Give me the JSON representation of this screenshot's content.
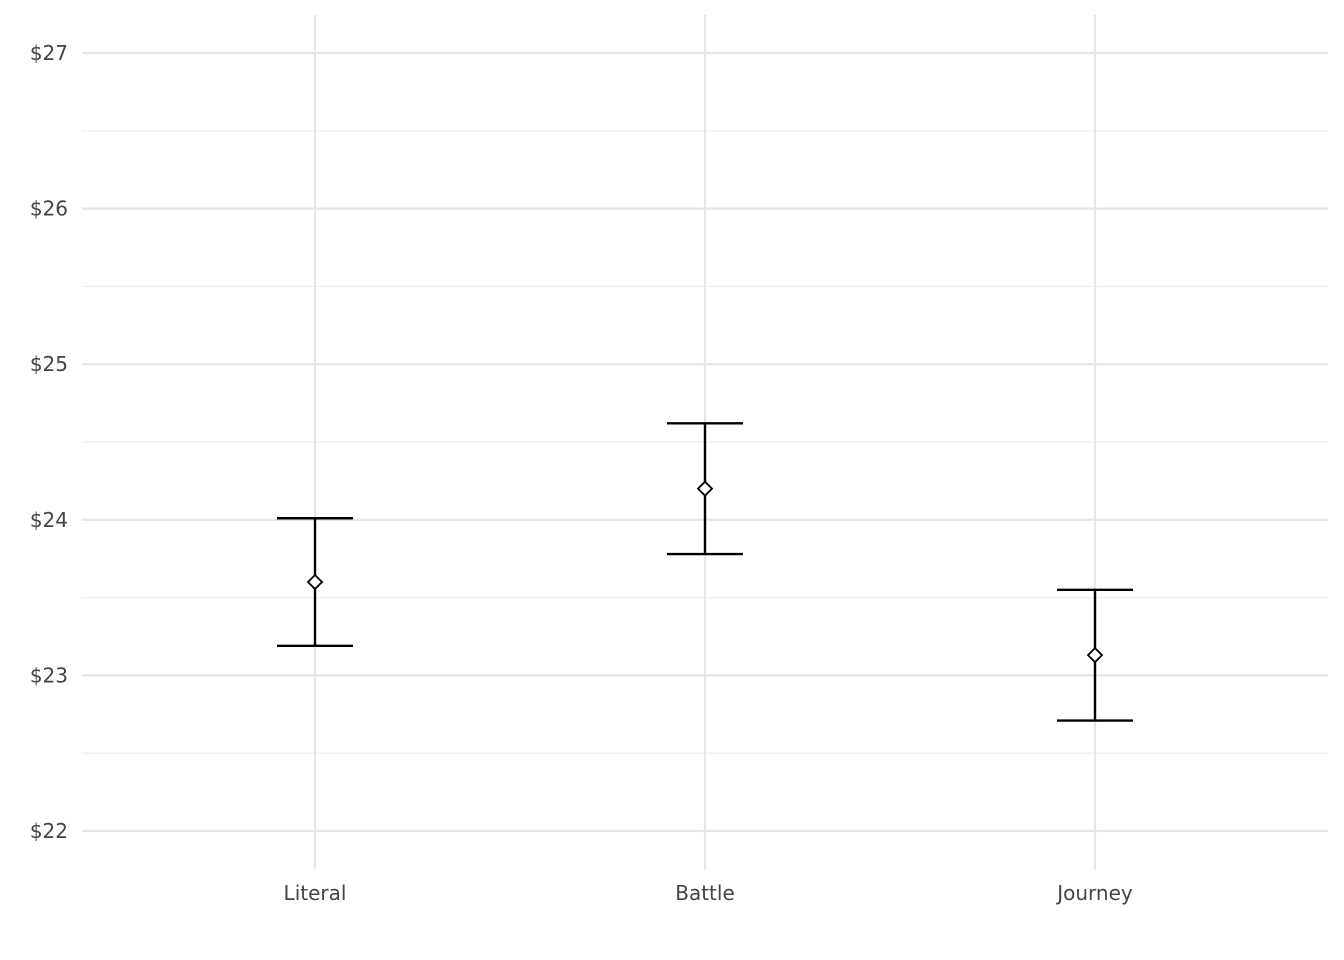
{
  "chart_data": {
    "type": "errorbar",
    "title": "",
    "xlabel": "",
    "ylabel": "",
    "categories": [
      "Literal",
      "Battle",
      "Journey"
    ],
    "series": [
      {
        "values": [
          23.6,
          24.2,
          23.13
        ],
        "lower": [
          23.19,
          23.78,
          22.71
        ],
        "upper": [
          24.01,
          24.62,
          23.55
        ]
      }
    ],
    "ylim": [
      21.85,
      27.25
    ],
    "y_ticks": [
      22,
      23,
      24,
      25,
      26,
      27
    ],
    "y_tick_labels": [
      "$22",
      "$23",
      "$24",
      "$25",
      "$26",
      "$27"
    ],
    "point_shape": "open-diamond",
    "grid": true,
    "legend": "none"
  }
}
